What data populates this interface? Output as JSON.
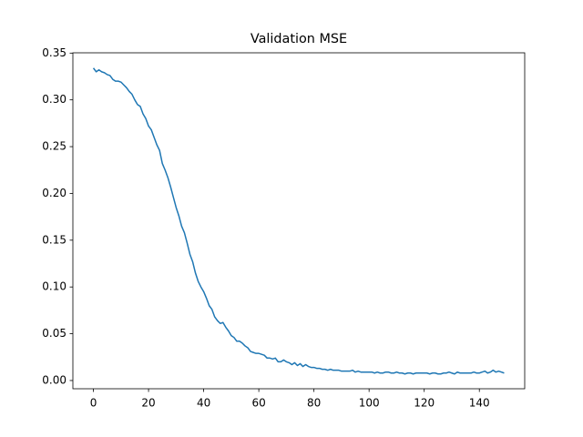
{
  "chart_data": {
    "type": "line",
    "title": "Validation MSE",
    "x": [
      0,
      1,
      2,
      3,
      4,
      5,
      6,
      7,
      8,
      9,
      10,
      11,
      12,
      13,
      14,
      15,
      16,
      17,
      18,
      19,
      20,
      21,
      22,
      23,
      24,
      25,
      26,
      27,
      28,
      29,
      30,
      31,
      32,
      33,
      34,
      35,
      36,
      37,
      38,
      39,
      40,
      41,
      42,
      43,
      44,
      45,
      46,
      47,
      48,
      49,
      50,
      51,
      52,
      53,
      54,
      55,
      56,
      57,
      58,
      59,
      60,
      61,
      62,
      63,
      64,
      65,
      66,
      67,
      68,
      69,
      70,
      71,
      72,
      73,
      74,
      75,
      76,
      77,
      78,
      79,
      80,
      81,
      82,
      83,
      84,
      85,
      86,
      87,
      88,
      89,
      90,
      91,
      92,
      93,
      94,
      95,
      96,
      97,
      98,
      99,
      100,
      101,
      102,
      103,
      104,
      105,
      106,
      107,
      108,
      109,
      110,
      111,
      112,
      113,
      114,
      115,
      116,
      117,
      118,
      119,
      120,
      121,
      122,
      123,
      124,
      125,
      126,
      127,
      128,
      129,
      130,
      131,
      132,
      133,
      134,
      135,
      136,
      137,
      138,
      139,
      140,
      141,
      142,
      143,
      144,
      145,
      146,
      147,
      148,
      149
    ],
    "series": [
      {
        "name": "Validation MSE",
        "color": "#1f77b4",
        "values": [
          0.334,
          0.33,
          0.332,
          0.33,
          0.329,
          0.327,
          0.326,
          0.322,
          0.32,
          0.32,
          0.319,
          0.316,
          0.313,
          0.309,
          0.306,
          0.3,
          0.295,
          0.293,
          0.285,
          0.28,
          0.272,
          0.268,
          0.26,
          0.252,
          0.246,
          0.232,
          0.225,
          0.217,
          0.207,
          0.196,
          0.185,
          0.176,
          0.165,
          0.158,
          0.147,
          0.135,
          0.127,
          0.115,
          0.106,
          0.1,
          0.095,
          0.088,
          0.08,
          0.076,
          0.068,
          0.064,
          0.061,
          0.062,
          0.057,
          0.053,
          0.048,
          0.046,
          0.042,
          0.042,
          0.04,
          0.037,
          0.035,
          0.031,
          0.03,
          0.029,
          0.029,
          0.028,
          0.027,
          0.024,
          0.024,
          0.023,
          0.024,
          0.02,
          0.02,
          0.022,
          0.02,
          0.019,
          0.017,
          0.019,
          0.016,
          0.018,
          0.015,
          0.017,
          0.015,
          0.014,
          0.014,
          0.013,
          0.013,
          0.012,
          0.012,
          0.011,
          0.012,
          0.011,
          0.011,
          0.011,
          0.01,
          0.01,
          0.01,
          0.01,
          0.011,
          0.009,
          0.01,
          0.009,
          0.009,
          0.009,
          0.009,
          0.009,
          0.008,
          0.009,
          0.008,
          0.008,
          0.009,
          0.009,
          0.008,
          0.008,
          0.009,
          0.008,
          0.008,
          0.007,
          0.008,
          0.008,
          0.007,
          0.008,
          0.008,
          0.008,
          0.008,
          0.008,
          0.007,
          0.008,
          0.008,
          0.007,
          0.007,
          0.008,
          0.008,
          0.009,
          0.008,
          0.007,
          0.009,
          0.008,
          0.008,
          0.008,
          0.008,
          0.008,
          0.009,
          0.008,
          0.008,
          0.009,
          0.01,
          0.008,
          0.009,
          0.011,
          0.009,
          0.01,
          0.009,
          0.008
        ]
      }
    ],
    "xlim": [
      -7.45,
      156.45
    ],
    "xticks": [
      0,
      20,
      40,
      60,
      80,
      100,
      120,
      140
    ],
    "ylim": [
      -0.0088,
      0.3503
    ],
    "yticks": [
      {
        "value": 0,
        "label": "0.00"
      },
      {
        "value": 0.05,
        "label": "0.05"
      },
      {
        "value": 0.1,
        "label": "0.10"
      },
      {
        "value": 0.15,
        "label": "0.15"
      },
      {
        "value": 0.2,
        "label": "0.20"
      },
      {
        "value": 0.25,
        "label": "0.25"
      },
      {
        "value": 0.3,
        "label": "0.30"
      },
      {
        "value": 0.35,
        "label": "0.35"
      }
    ],
    "grid": false
  }
}
